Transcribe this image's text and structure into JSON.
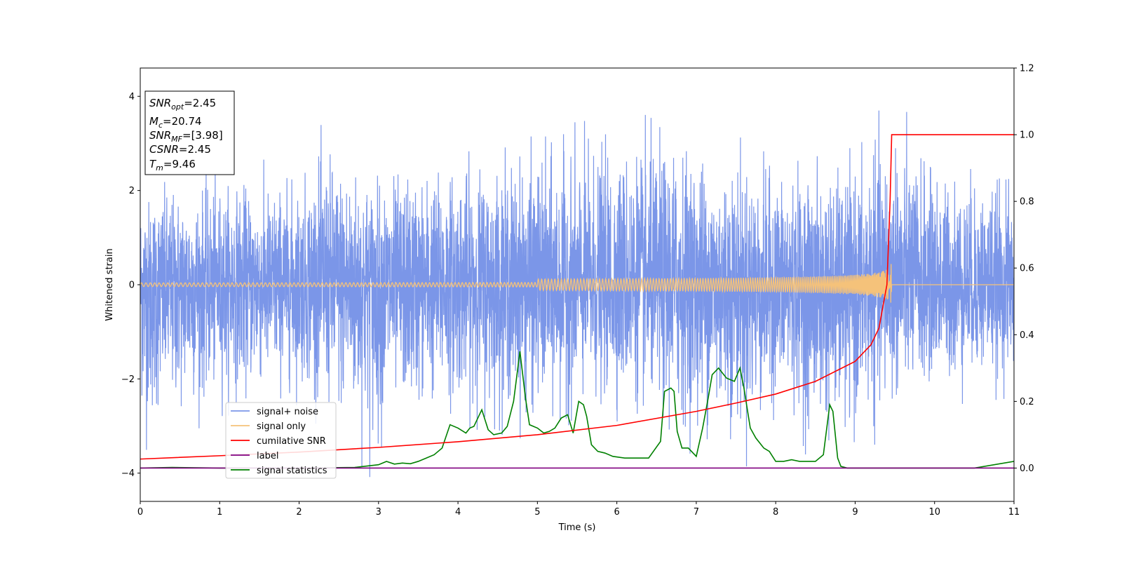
{
  "chart_data": {
    "type": "line",
    "xlabel": "Time (s)",
    "ylabel": "Whitened strain",
    "xlim": [
      0,
      11
    ],
    "ylim": [
      -4.6,
      4.6
    ],
    "y2lim": [
      -0.1,
      1.2
    ],
    "xticks": [
      0,
      1,
      2,
      3,
      4,
      5,
      6,
      7,
      8,
      9,
      10,
      11
    ],
    "yticks": [
      -4,
      -2,
      0,
      2,
      4
    ],
    "y2ticks": [
      0.0,
      0.2,
      0.4,
      0.6,
      0.8,
      1.0,
      1.2
    ],
    "xtick_labels": [
      "0",
      "1",
      "2",
      "3",
      "4",
      "5",
      "6",
      "7",
      "8",
      "9",
      "10",
      "11"
    ],
    "ytick_labels": [
      "−4",
      "−2",
      "0",
      "2",
      "4"
    ],
    "y2tick_labels": [
      "0.0",
      "0.2",
      "0.4",
      "0.6",
      "0.8",
      "1.0",
      "1.2"
    ],
    "legend_position": "lower-left",
    "grid": false,
    "info_box": {
      "lines": [
        {
          "sym": "SNR",
          "sub": "opt",
          "value": "=2.45"
        },
        {
          "sym": "M",
          "sub": "c",
          "value": "=20.74"
        },
        {
          "sym": "SNR",
          "sub": "MF",
          "value": "=[3.98]"
        },
        {
          "sym": "CSNR",
          "sub": "",
          "value": "=2.45"
        },
        {
          "sym": "T",
          "sub": "m",
          "value": "=9.46"
        }
      ]
    },
    "series": [
      {
        "name": "signal+ noise",
        "axis": "left",
        "color": "#7b96e8",
        "kind": "noise",
        "envelope_upper": [
          [
            0,
            2.5
          ],
          [
            1,
            2.6
          ],
          [
            2,
            2.7
          ],
          [
            2.32,
            3.5
          ],
          [
            3,
            2.8
          ],
          [
            4,
            3.1
          ],
          [
            6.75,
            3.75
          ],
          [
            8,
            2.9
          ],
          [
            9,
            2.9
          ],
          [
            9.45,
            4.1
          ],
          [
            10,
            2.9
          ],
          [
            11,
            2.6
          ]
        ],
        "envelope_lower": [
          [
            0,
            -2.6
          ],
          [
            0.04,
            -3.95
          ],
          [
            0.27,
            -3.5
          ],
          [
            1,
            -2.8
          ],
          [
            2,
            -2.6
          ],
          [
            2.93,
            -4.15
          ],
          [
            3.2,
            -3.3
          ],
          [
            4,
            -3.0
          ],
          [
            5.2,
            -3.4
          ],
          [
            6,
            -2.9
          ],
          [
            6.78,
            -3.55
          ],
          [
            7.38,
            -3.7
          ],
          [
            7.7,
            -3.9
          ],
          [
            8,
            -3.0
          ],
          [
            8.56,
            -3.9
          ],
          [
            8.95,
            -3.9
          ],
          [
            9.45,
            -3.05
          ],
          [
            10,
            -2.6
          ],
          [
            11,
            -2.4
          ]
        ]
      },
      {
        "name": "signal only",
        "axis": "left",
        "color": "#f5c27a",
        "kind": "chirp",
        "merger_time": 9.46,
        "peak_amplitude": 0.5
      },
      {
        "name": "cumilative SNR",
        "axis": "right",
        "color": "#ff0000",
        "x": [
          0,
          1,
          2,
          3,
          4,
          5,
          6,
          7,
          7.5,
          8,
          8.5,
          9,
          9.2,
          9.3,
          9.4,
          9.44,
          9.46,
          11
        ],
        "values": [
          0.027,
          0.037,
          0.048,
          0.062,
          0.079,
          0.1,
          0.128,
          0.17,
          0.195,
          0.222,
          0.26,
          0.32,
          0.37,
          0.42,
          0.55,
          0.8,
          1.0,
          1.0
        ]
      },
      {
        "name": "label",
        "axis": "right",
        "color": "#800080",
        "x": [
          0,
          11
        ],
        "values": [
          0.0,
          0.0
        ]
      },
      {
        "name": "signal statistics",
        "axis": "right",
        "color": "#008000",
        "x": [
          0,
          0.4,
          1,
          2,
          2.7,
          3,
          3.1,
          3.2,
          3.3,
          3.4,
          3.5,
          3.6,
          3.7,
          3.8,
          3.9,
          4.0,
          4.1,
          4.15,
          4.2,
          4.3,
          4.38,
          4.45,
          4.55,
          4.62,
          4.7,
          4.78,
          4.85,
          4.9,
          5.0,
          5.08,
          5.15,
          5.22,
          5.3,
          5.38,
          5.45,
          5.52,
          5.58,
          5.62,
          5.68,
          5.76,
          5.85,
          5.95,
          6.1,
          6.25,
          6.4,
          6.55,
          6.6,
          6.68,
          6.72,
          6.76,
          6.82,
          6.9,
          7.0,
          7.08,
          7.15,
          7.2,
          7.28,
          7.38,
          7.48,
          7.55,
          7.6,
          7.68,
          7.75,
          7.85,
          7.92,
          8.0,
          8.1,
          8.2,
          8.3,
          8.4,
          8.5,
          8.6,
          8.68,
          8.72,
          8.78,
          8.82,
          8.9,
          9.0,
          9.5,
          10.5,
          11
        ],
        "values": [
          0.0,
          0.002,
          0.0,
          0.0,
          0.002,
          0.01,
          0.02,
          0.012,
          0.015,
          0.013,
          0.02,
          0.03,
          0.04,
          0.06,
          0.13,
          0.12,
          0.105,
          0.12,
          0.125,
          0.175,
          0.115,
          0.1,
          0.105,
          0.125,
          0.2,
          0.35,
          0.21,
          0.13,
          0.12,
          0.105,
          0.11,
          0.12,
          0.15,
          0.16,
          0.105,
          0.2,
          0.19,
          0.155,
          0.07,
          0.05,
          0.045,
          0.035,
          0.03,
          0.03,
          0.03,
          0.08,
          0.23,
          0.24,
          0.23,
          0.11,
          0.06,
          0.06,
          0.035,
          0.12,
          0.21,
          0.28,
          0.3,
          0.27,
          0.26,
          0.3,
          0.24,
          0.12,
          0.09,
          0.06,
          0.05,
          0.02,
          0.02,
          0.025,
          0.02,
          0.02,
          0.02,
          0.04,
          0.19,
          0.17,
          0.03,
          0.005,
          0.0,
          0.0,
          0.0,
          0.0,
          0.02
        ]
      }
    ]
  }
}
